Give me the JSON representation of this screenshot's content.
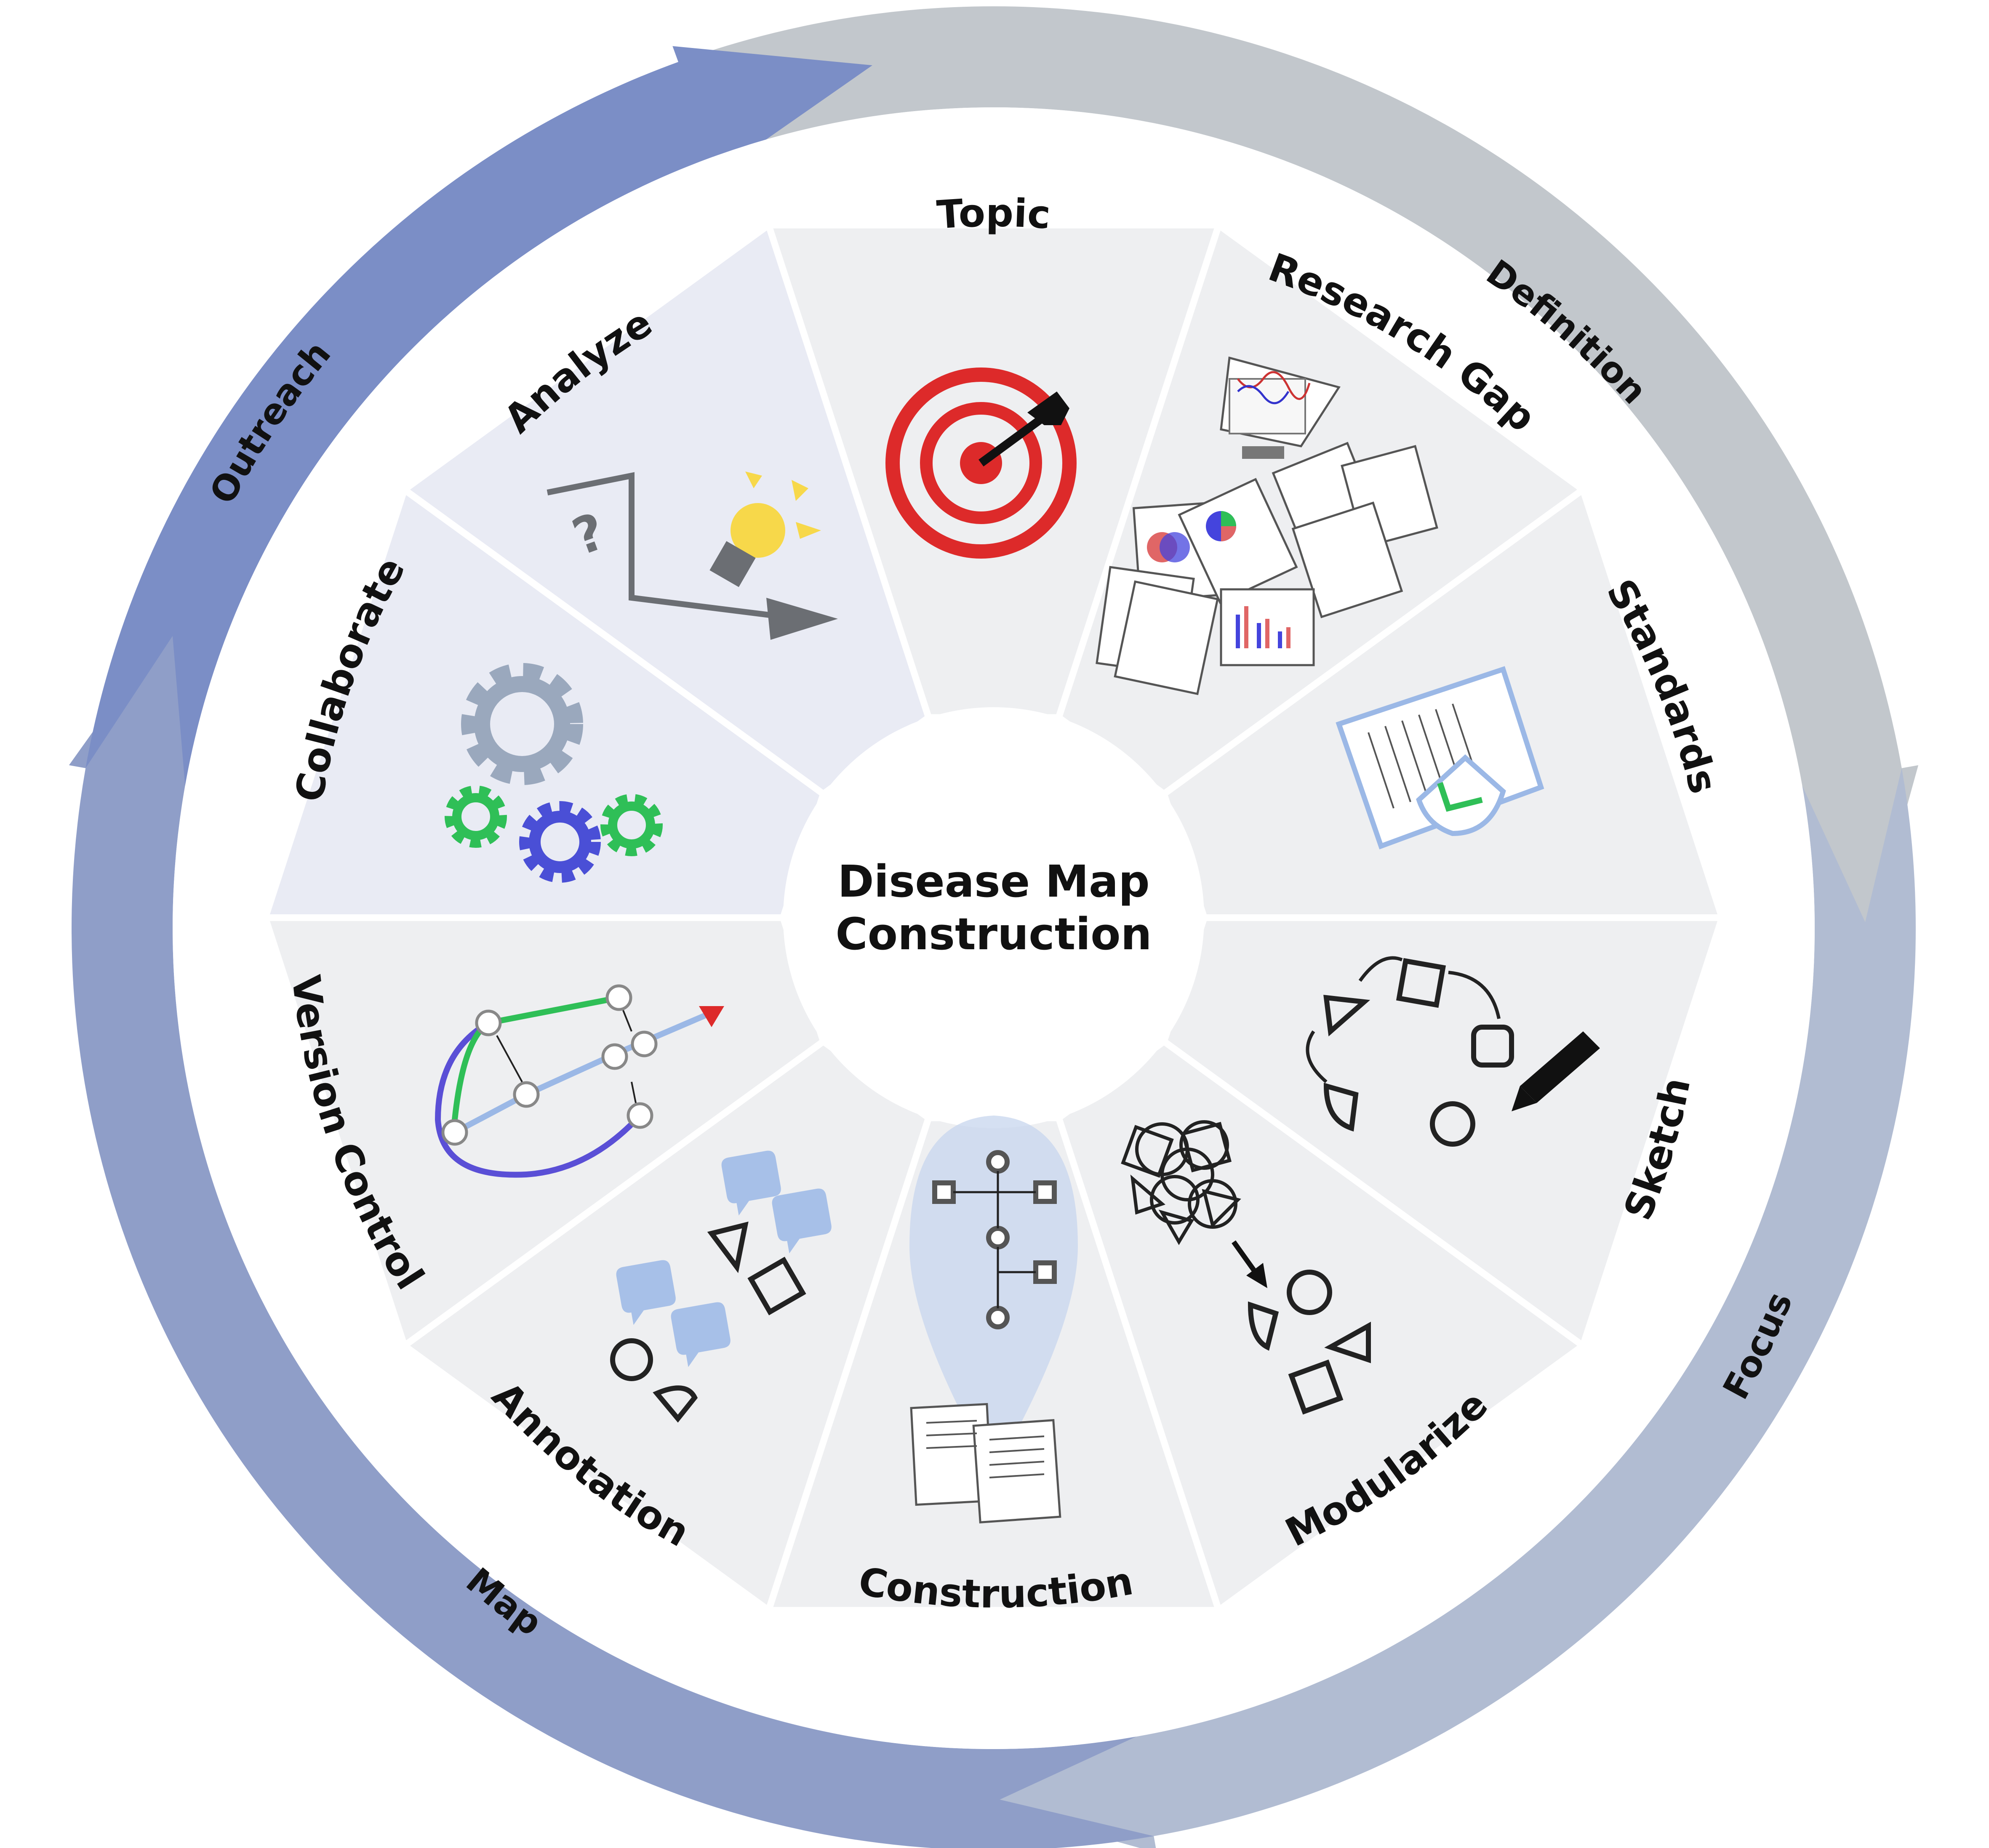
{
  "center": {
    "line1": "Disease Map",
    "line2": "Construction"
  },
  "phases": [
    {
      "id": "definition",
      "label": "Definition",
      "color": "#c2c7cc"
    },
    {
      "id": "focus",
      "label": "Focus",
      "color": "#b1bcd2"
    },
    {
      "id": "map",
      "label": "Map",
      "color": "#8f9ec8"
    },
    {
      "id": "outreach",
      "label": "Outreach",
      "color": "#7b8ec6"
    }
  ],
  "segments": [
    {
      "id": "topic",
      "label": "Topic",
      "icon": "target-icon"
    },
    {
      "id": "research-gap",
      "label": "Research Gap",
      "icon": "documents-icon"
    },
    {
      "id": "standards",
      "label": "Standards",
      "icon": "certified-document-icon"
    },
    {
      "id": "sketch",
      "label": "Sketch",
      "icon": "sketch-shapes-icon"
    },
    {
      "id": "modularize",
      "label": "Modularize",
      "icon": "modularize-icon"
    },
    {
      "id": "construction",
      "label": "Construction",
      "icon": "network-document-icon"
    },
    {
      "id": "annotation",
      "label": "Annotation",
      "icon": "comment-shapes-icon"
    },
    {
      "id": "version-control",
      "label": "Version Control",
      "icon": "git-branch-icon"
    },
    {
      "id": "collaborate",
      "label": "Collaborate",
      "icon": "gears-icon"
    },
    {
      "id": "analyze",
      "label": "Analyze",
      "icon": "lightbulb-icon"
    }
  ],
  "colors": {
    "segment_fill": "#eeeff1",
    "segment_fill_outreach": "#e9ebf4",
    "separator": "#ffffff",
    "target_red": "#dd2a2a",
    "gear_gray": "#9aa8bd",
    "gear_green": "#2fbf57",
    "gear_blue": "#4a4fd6",
    "bubble_blue": "#a7c0e8",
    "bulb_yellow": "#f7d84a",
    "branch_green": "#2fbf57",
    "branch_blue": "#9bb8e6",
    "branch_purple": "#5a4fd6"
  }
}
